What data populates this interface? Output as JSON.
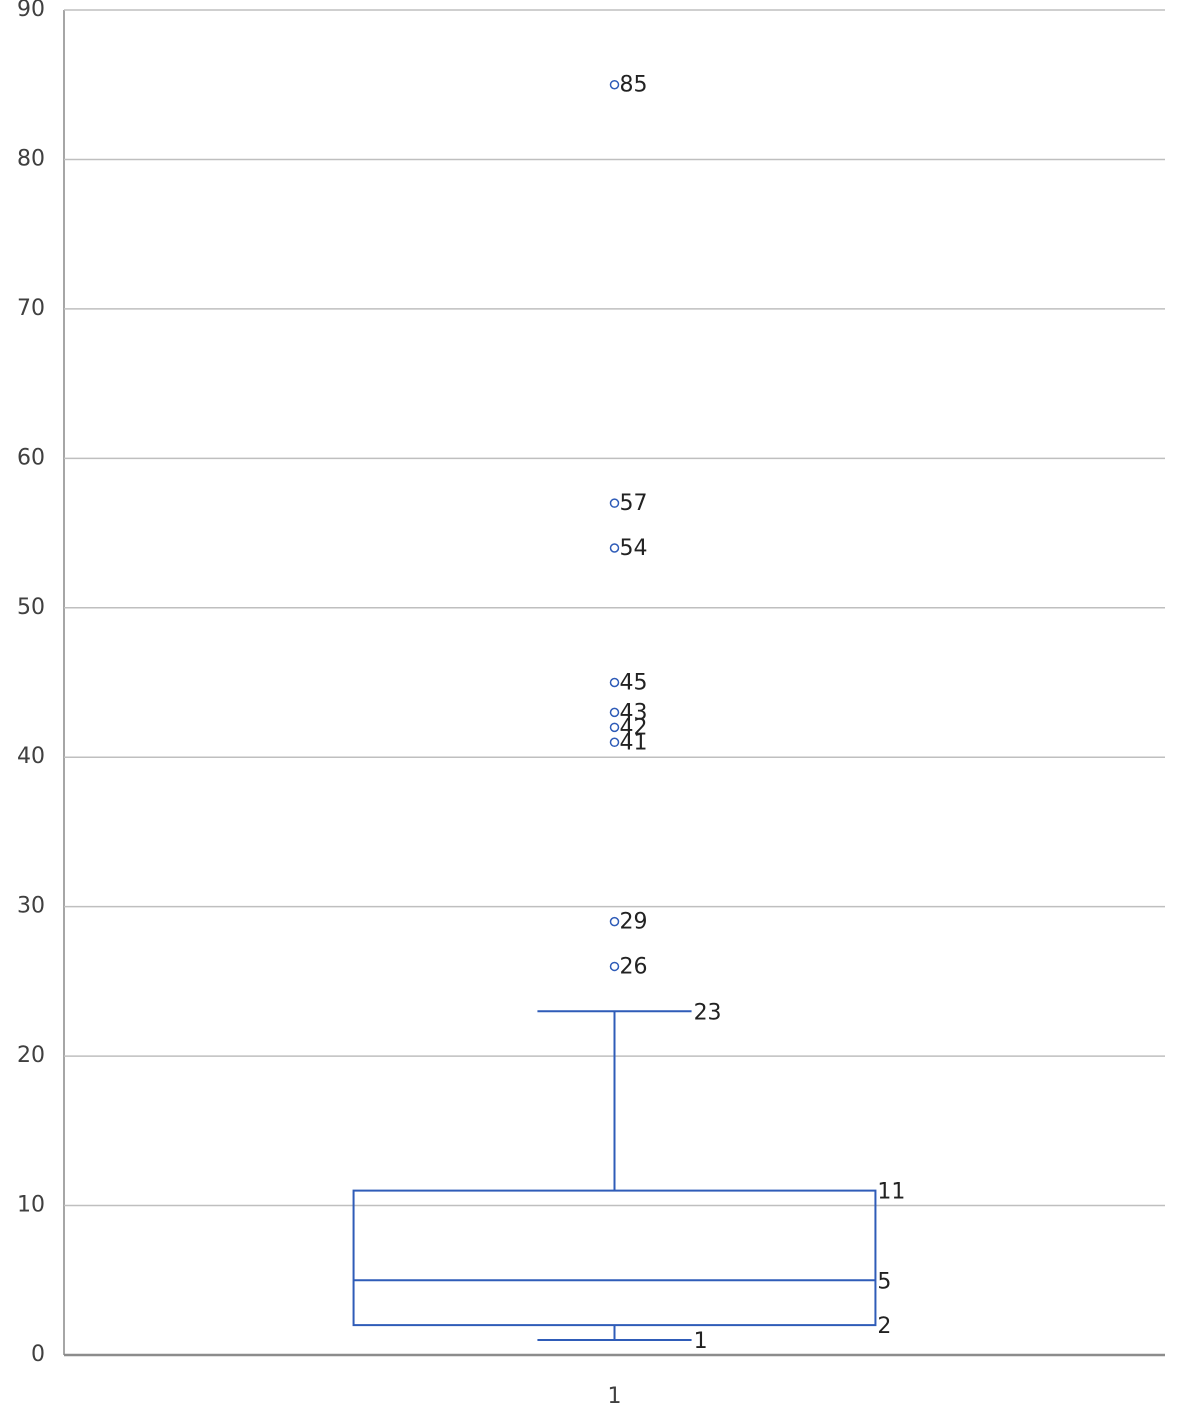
{
  "chart_data": {
    "type": "box",
    "categories": [
      "1"
    ],
    "boxes": [
      {
        "whisker_low": 1,
        "q1": 2,
        "median": 5,
        "q3": 11,
        "whisker_high": 23,
        "outliers": [
          26,
          29,
          41,
          42,
          43,
          45,
          54,
          57,
          85
        ]
      }
    ],
    "color": "#2f5cb8",
    "ylim": [
      0,
      90
    ],
    "yticks": [
      0,
      10,
      20,
      30,
      40,
      50,
      60,
      70,
      80,
      90
    ],
    "grid": true
  }
}
